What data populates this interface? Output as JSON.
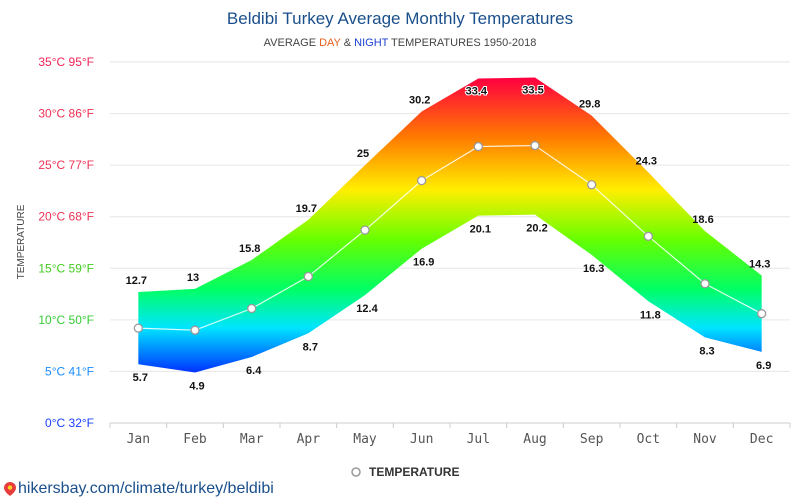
{
  "title": "Beldibi Turkey Average Monthly Temperatures",
  "subtitle": {
    "prefix": "AVERAGE ",
    "day_word": "DAY",
    "mid": " & ",
    "night_word": "NIGHT",
    "suffix": " TEMPERATURES 1950-2018"
  },
  "legend_label": "TEMPERATURE",
  "source_link": "hikersbay.com/climate/turkey/beldibi",
  "colors": {
    "title": "#1a4f8b",
    "day": "#e8601c",
    "night": "#1a3fd1",
    "hot": "#ff0040",
    "cold": "#1a40ff"
  },
  "chart_data": {
    "type": "area",
    "categories": [
      "Jan",
      "Feb",
      "Mar",
      "Apr",
      "May",
      "Jun",
      "Jul",
      "Aug",
      "Sep",
      "Oct",
      "Nov",
      "Dec"
    ],
    "ylabel": "TEMPERATURE",
    "ylim": [
      0,
      35
    ],
    "ytick_labels": [
      "0°C 32°F",
      "5°C 41°F",
      "10°C 50°F",
      "15°C 59°F",
      "20°C 68°F",
      "25°C 77°F",
      "30°C 86°F",
      "35°C 95°F"
    ],
    "ytick_colors": [
      "#1a40ff",
      "#1a8cff",
      "#33cc33",
      "#44cc22",
      "#ee3355",
      "#ee3355",
      "#ee3355",
      "#ee2255"
    ],
    "grid": true,
    "legend_position": "bottom",
    "series": [
      {
        "name": "DAY",
        "values": [
          12.7,
          13,
          15.8,
          19.7,
          25,
          30.2,
          33.4,
          33.5,
          29.8,
          24.3,
          18.6,
          14.3
        ]
      },
      {
        "name": "NIGHT",
        "values": [
          5.7,
          4.9,
          6.4,
          8.7,
          12.4,
          16.9,
          20.1,
          20.2,
          16.3,
          11.8,
          8.3,
          6.9
        ]
      },
      {
        "name": "TEMPERATURE",
        "values": [
          9.2,
          9.0,
          11.1,
          14.2,
          18.7,
          23.5,
          26.8,
          26.9,
          23.1,
          18.1,
          13.5,
          10.6
        ]
      }
    ]
  }
}
